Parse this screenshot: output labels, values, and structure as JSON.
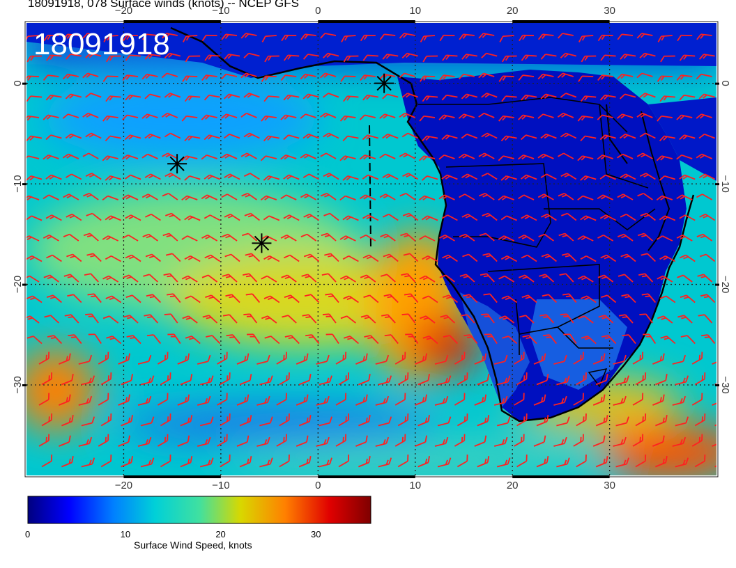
{
  "title": "18091918, 078 Surface winds (knots) -- NCEP GFS",
  "timestamp_overlay": "18091918",
  "map": {
    "projection": "equirectangular",
    "lon_range": [
      -30,
      41
    ],
    "lat_range": [
      6,
      -39
    ],
    "lon_ticks": [
      -20,
      -10,
      0,
      10,
      20,
      30
    ],
    "lat_ticks": [
      0,
      -10,
      -20,
      -30
    ],
    "lon_tick_labels": [
      "−20",
      "−10",
      "0",
      "10",
      "20",
      "30"
    ],
    "lat_tick_labels": [
      "0",
      "−10",
      "−20",
      "−30"
    ],
    "gridlines": "dotted",
    "barb_color": "#ff2020",
    "coastline_color": "#000000",
    "storm_markers": [
      {
        "lon": -14.5,
        "lat": -8.0
      },
      {
        "lon": -5.8,
        "lat": -15.9
      },
      {
        "lon": 6.8,
        "lat": 0.0
      }
    ]
  },
  "colorbar": {
    "title": "Surface Wind Speed, knots",
    "tick_labels": [
      "0",
      "10",
      "20",
      "30"
    ],
    "tick_values": [
      0,
      10,
      20,
      30
    ],
    "range": [
      0,
      36
    ],
    "colors": [
      "#00007f",
      "#0000ff",
      "#0080ff",
      "#00d0d8",
      "#40e0a0",
      "#d8d800",
      "#ff8000",
      "#e00000",
      "#7f0000"
    ]
  }
}
